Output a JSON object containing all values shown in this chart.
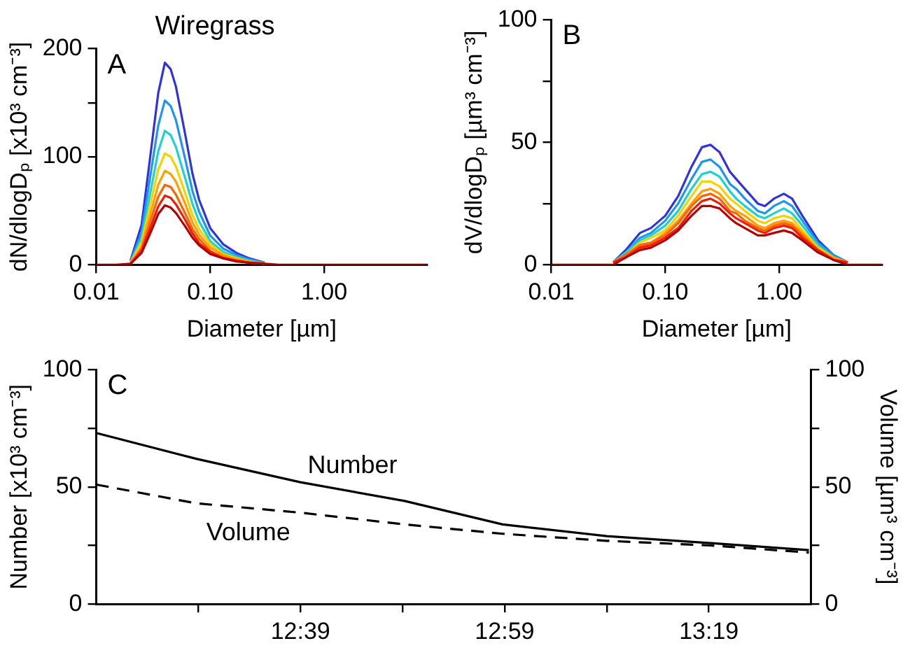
{
  "chart_data": [
    {
      "type": "line",
      "title": "Wiregrass",
      "annotations": [
        "A"
      ],
      "xlabel": "Diameter [µm]",
      "ylabel": "dN/dlogDₚ [x10³ cm⁻³]",
      "log": "x",
      "marker": "none",
      "x": [
        0.01,
        0.015,
        0.02,
        0.025,
        0.03,
        0.035,
        0.04,
        0.045,
        0.05,
        0.06,
        0.07,
        0.08,
        0.1,
        0.13,
        0.17,
        0.22,
        0.3,
        0.4,
        0.6,
        1,
        2,
        5,
        8
      ],
      "xlim": [
        0.01,
        8
      ],
      "xticks": [
        {
          "value": 0.01,
          "label": "0.01"
        },
        {
          "value": 0.1,
          "label": "0.10"
        },
        {
          "value": 1,
          "label": "1.00"
        }
      ],
      "ylim": [
        0,
        200
      ],
      "yticks": [
        0,
        {
          "value": 50,
          "label": null
        },
        100,
        {
          "value": 150,
          "label": null
        },
        200
      ],
      "series": [
        {
          "color": "#3232dc",
          "values": [
            null,
            null,
            4,
            37,
            103,
            159,
            187,
            181,
            165,
            122,
            84,
            60,
            34,
            19,
            11,
            6,
            2,
            null,
            null,
            null,
            null,
            null,
            null
          ]
        },
        {
          "color": "#1e96f0",
          "values": [
            null,
            null,
            3,
            30,
            84,
            129,
            152,
            147,
            134,
            99,
            68,
            49,
            27,
            15,
            9,
            5,
            2,
            null,
            null,
            null,
            null,
            null,
            null
          ]
        },
        {
          "color": "#1ed2d2",
          "values": [
            null,
            null,
            2,
            25,
            68,
            105,
            124,
            120,
            109,
            81,
            56,
            40,
            22,
            12,
            7,
            4,
            1,
            null,
            null,
            null,
            null,
            null,
            null
          ]
        },
        {
          "color": "#f5d200",
          "values": [
            null,
            null,
            2,
            21,
            57,
            88,
            103,
            100,
            91,
            67,
            46,
            33,
            19,
            10,
            6,
            3,
            1,
            null,
            null,
            null,
            null,
            null,
            null
          ]
        },
        {
          "color": "#ffa000",
          "values": [
            null,
            null,
            2,
            17,
            48,
            74,
            87,
            84,
            77,
            57,
            39,
            28,
            16,
            9,
            5,
            3,
            1,
            null,
            null,
            null,
            null,
            null,
            null
          ]
        },
        {
          "color": "#ff6400",
          "values": [
            null,
            null,
            1,
            15,
            41,
            63,
            74,
            72,
            65,
            48,
            33,
            24,
            13,
            7,
            4,
            2,
            1,
            null,
            null,
            null,
            null,
            null,
            null
          ]
        },
        {
          "color": "#f01e00",
          "values": [
            null,
            null,
            1,
            13,
            35,
            54,
            64,
            62,
            56,
            42,
            29,
            20,
            12,
            6,
            4,
            2,
            1,
            null,
            null,
            null,
            null,
            null,
            null
          ]
        },
        {
          "color": "#b40000",
          "values": [
            0,
            0,
            1,
            11,
            30,
            47,
            55,
            53,
            48,
            36,
            25,
            18,
            10,
            6,
            3,
            2,
            1,
            0,
            0,
            0,
            0,
            0,
            0
          ]
        }
      ]
    },
    {
      "type": "line",
      "annotations": [
        "B"
      ],
      "xlabel": "Diameter [µm]",
      "ylabel": "dV/dlogDₚ [µm³ cm⁻³]",
      "log": "x",
      "marker": "none",
      "x": [
        0.01,
        0.02,
        0.03,
        0.035,
        0.045,
        0.06,
        0.075,
        0.1,
        0.13,
        0.17,
        0.21,
        0.25,
        0.3,
        0.37,
        0.42,
        0.5,
        0.65,
        0.75,
        0.9,
        1.1,
        1.3,
        1.6,
        2.2,
        3,
        4,
        5,
        8
      ],
      "xlim": [
        0.01,
        8
      ],
      "xticks": [
        {
          "value": 0.01,
          "label": "0.01"
        },
        {
          "value": 0.1,
          "label": "0.10"
        },
        {
          "value": 1,
          "label": "1.00"
        }
      ],
      "ylim": [
        0,
        100
      ],
      "yticks": [
        0,
        {
          "value": 25,
          "label": null
        },
        50,
        {
          "value": 75,
          "label": null
        },
        100
      ],
      "series": [
        {
          "color": "#3232dc",
          "values": [
            null,
            null,
            null,
            1,
            6,
            13,
            15,
            20,
            28,
            40,
            48,
            49,
            46,
            38,
            35,
            31,
            25,
            24,
            27,
            29,
            27,
            20,
            10,
            4,
            1,
            null,
            null
          ]
        },
        {
          "color": "#1e96f0",
          "values": [
            null,
            null,
            null,
            1,
            5,
            11,
            13,
            18,
            25,
            35,
            42,
            43,
            40,
            33,
            31,
            27,
            22,
            21,
            24,
            26,
            24,
            18,
            9,
            4,
            1,
            null,
            null
          ]
        },
        {
          "color": "#1ed2d2",
          "values": [
            null,
            null,
            null,
            1,
            5,
            10,
            12,
            16,
            22,
            31,
            37,
            38,
            36,
            30,
            27,
            24,
            20,
            19,
            21,
            23,
            21,
            16,
            8,
            3,
            1,
            null,
            null
          ]
        },
        {
          "color": "#f5d200",
          "values": [
            null,
            null,
            null,
            1,
            4,
            9,
            11,
            14,
            20,
            28,
            34,
            34,
            32,
            27,
            25,
            22,
            18,
            17,
            19,
            20,
            19,
            14,
            7,
            3,
            1,
            null,
            null
          ]
        },
        {
          "color": "#ffa000",
          "values": [
            null,
            null,
            null,
            1,
            4,
            8,
            9,
            13,
            18,
            25,
            30,
            31,
            29,
            24,
            22,
            20,
            16,
            15,
            17,
            18,
            17,
            13,
            6,
            3,
            1,
            null,
            null
          ]
        },
        {
          "color": "#ff6400",
          "values": [
            null,
            null,
            null,
            1,
            4,
            8,
            9,
            12,
            17,
            24,
            28,
            29,
            27,
            22,
            21,
            18,
            15,
            14,
            16,
            17,
            16,
            12,
            6,
            2,
            1,
            null,
            null
          ]
        },
        {
          "color": "#f01e00",
          "values": [
            null,
            null,
            null,
            1,
            3,
            7,
            8,
            11,
            15,
            22,
            26,
            27,
            25,
            21,
            19,
            17,
            14,
            13,
            15,
            16,
            15,
            11,
            6,
            2,
            1,
            null,
            null
          ]
        },
        {
          "color": "#b40000",
          "values": [
            0,
            0,
            0,
            0,
            3,
            6,
            7,
            10,
            14,
            20,
            24,
            24,
            23,
            19,
            17,
            15,
            12,
            12,
            13,
            14,
            13,
            10,
            5,
            2,
            0,
            0,
            0
          ]
        }
      ]
    },
    {
      "type": "line",
      "annotations": [
        "C"
      ],
      "ylabel": "Number [x10³ cm⁻³]",
      "y2label": "Volume [µm³ cm⁻³]",
      "marker": "none",
      "x": [
        12.3167,
        12.48,
        12.65,
        12.82,
        12.98,
        13.15,
        13.32,
        13.48
      ],
      "xlim": [
        12.3167,
        13.4833
      ],
      "xticks": [
        {
          "value": 12.4833,
          "label": null
        },
        {
          "value": 12.65,
          "label": "12:39"
        },
        {
          "value": 12.8167,
          "label": null
        },
        {
          "value": 12.9833,
          "label": "12:59"
        },
        {
          "value": 13.15,
          "label": null
        },
        {
          "value": 13.3167,
          "label": "13:19"
        }
      ],
      "ylim": [
        0,
        100
      ],
      "yticks": [
        0,
        {
          "value": 25,
          "label": null
        },
        50,
        {
          "value": 75,
          "label": null
        },
        100
      ],
      "y2lim": [
        0,
        100
      ],
      "y2ticks": [
        0,
        {
          "value": 25,
          "label": null
        },
        50,
        {
          "value": 75,
          "label": null
        },
        100
      ],
      "series": [
        {
          "name": "Number",
          "color": "#000000",
          "line_style": "solid",
          "values": [
            73,
            62,
            52,
            44,
            34,
            29,
            26,
            23
          ]
        },
        {
          "name": "Volume",
          "color": "#000000",
          "line_style": "dashed",
          "axis": "y2",
          "values": [
            51,
            43,
            39,
            34,
            30,
            27,
            25,
            22
          ]
        }
      ]
    }
  ]
}
